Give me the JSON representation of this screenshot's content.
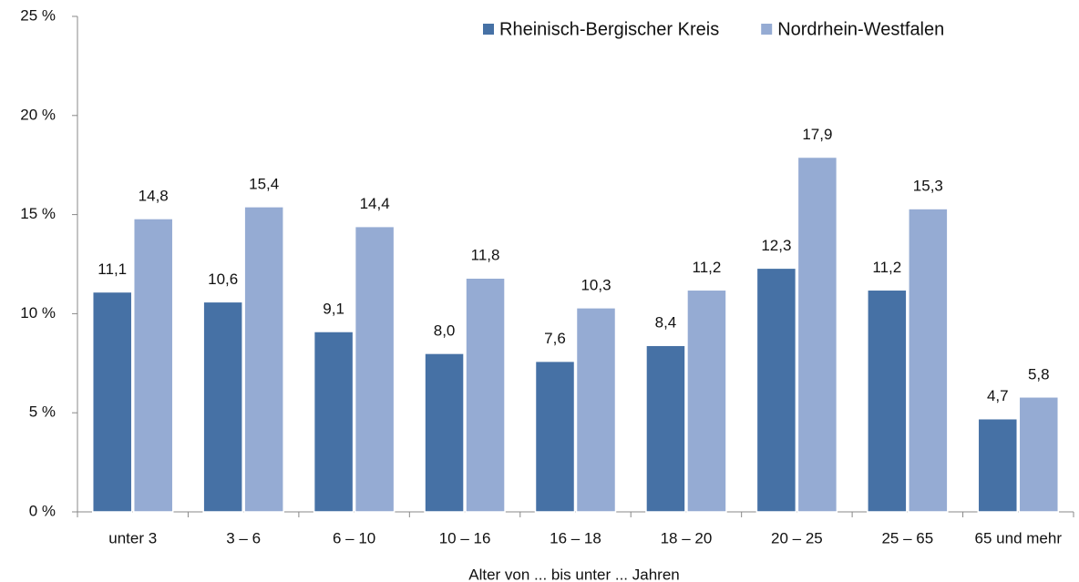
{
  "chart_data": {
    "type": "bar",
    "x_label": "Alter von ... bis unter ... Jahren",
    "categories": [
      "unter 3",
      "3 –  6",
      "6 – 10",
      "10 – 16",
      "16 – 18",
      "18 – 20",
      "20 – 25",
      "25 – 65",
      "65 und mehr"
    ],
    "series": [
      {
        "name": "Rheinisch-Bergischer Kreis",
        "color": "#4671a5",
        "values": [
          11.1,
          10.6,
          9.1,
          8.0,
          7.6,
          8.4,
          12.3,
          11.2,
          4.7
        ],
        "value_labels": [
          "11,1",
          "10,6",
          "9,1",
          "8,0",
          "7,6",
          "8,4",
          "12,3",
          "11,2",
          "4,7"
        ]
      },
      {
        "name": "Nordrhein-Westfalen",
        "color": "#95abd3",
        "values": [
          14.8,
          15.4,
          14.4,
          11.8,
          10.3,
          11.2,
          17.9,
          15.3,
          5.8
        ],
        "value_labels": [
          "14,8",
          "15,4",
          "14,4",
          "11,8",
          "10,3",
          "11,2",
          "17,9",
          "15,3",
          "5,8"
        ]
      }
    ],
    "ylim": [
      0,
      25
    ],
    "yticks": [
      {
        "value": 0,
        "label": "0 %"
      },
      {
        "value": 5,
        "label": "5 %"
      },
      {
        "value": 10,
        "label": "10 %"
      },
      {
        "value": 15,
        "label": "15 %"
      },
      {
        "value": 20,
        "label": "20 %"
      },
      {
        "value": 25,
        "label": "25 %"
      }
    ],
    "grid": false,
    "legend": "top-right"
  }
}
